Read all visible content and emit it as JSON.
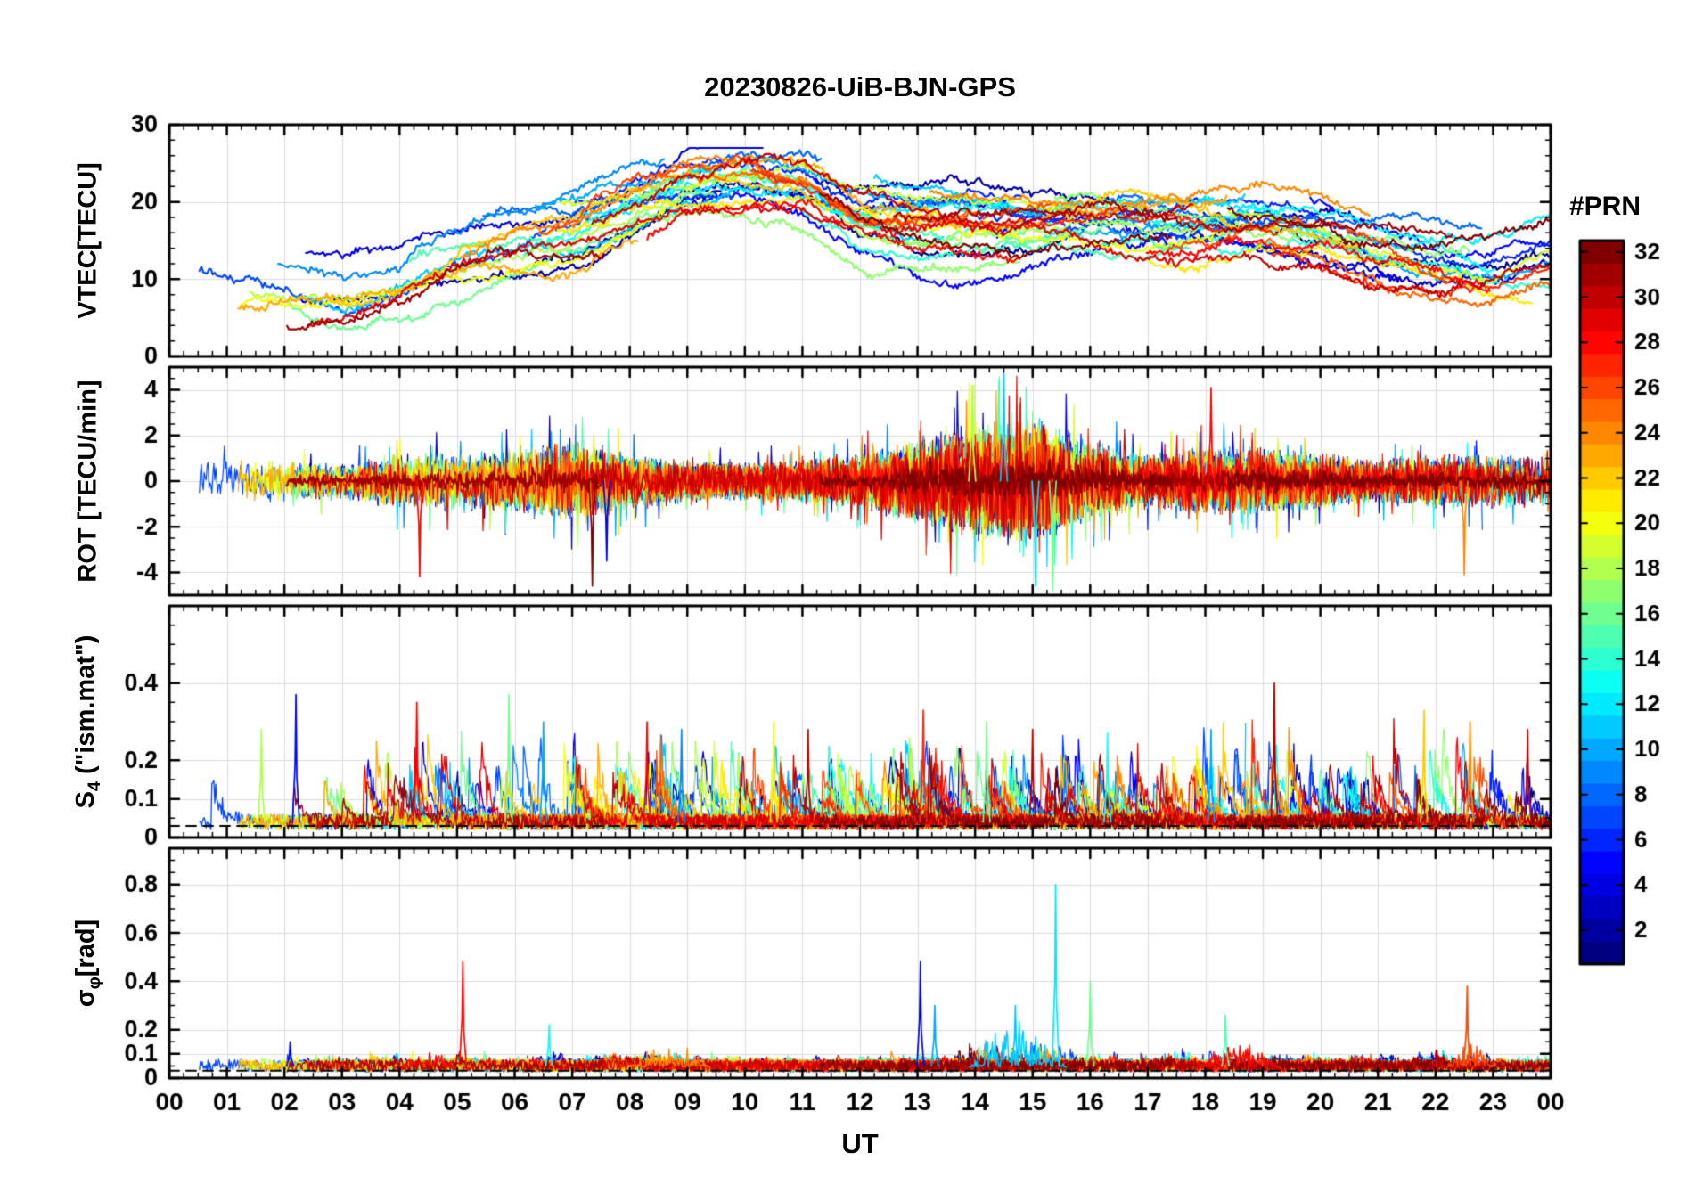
{
  "chart_data": {
    "type": "line",
    "title": "20230826-UiB-BJN-GPS",
    "xlabel": "UT",
    "xlim": [
      0,
      24
    ],
    "xticks": [
      0,
      1,
      2,
      3,
      4,
      5,
      6,
      7,
      8,
      9,
      10,
      11,
      12,
      13,
      14,
      15,
      16,
      17,
      18,
      19,
      20,
      21,
      22,
      23,
      24
    ],
    "xticklabels": [
      "00",
      "01",
      "02",
      "03",
      "04",
      "05",
      "06",
      "07",
      "08",
      "09",
      "10",
      "11",
      "12",
      "13",
      "14",
      "15",
      "16",
      "17",
      "18",
      "19",
      "20",
      "21",
      "22",
      "23",
      "00"
    ],
    "grid": true,
    "colorbar": {
      "label": "#PRN",
      "colormap": "jet",
      "lim": [
        1,
        32
      ],
      "ticks": [
        2,
        4,
        6,
        8,
        10,
        12,
        14,
        16,
        18,
        20,
        22,
        24,
        26,
        28,
        30,
        32
      ]
    },
    "panels": [
      {
        "name": "VTEC",
        "ylabel": "VTEC[TECU]",
        "ylim": [
          0,
          30
        ],
        "yticks": [
          0,
          10,
          20,
          30
        ],
        "series_model": {
          "kind": "multi-prn-smooth-arcs",
          "mean_curve_hourly": [
            10,
            9,
            8.5,
            8,
            9.5,
            13,
            15,
            16,
            19,
            22,
            23,
            22,
            18,
            17,
            17,
            17,
            17,
            16.5,
            16,
            16,
            15,
            13,
            11.5,
            11,
            12
          ],
          "spread": 4,
          "range": [
            4,
            26
          ]
        }
      },
      {
        "name": "ROT",
        "ylabel": "ROT [TECU/min]",
        "ylim": [
          -5,
          5
        ],
        "yticks": [
          -4,
          -2,
          0,
          2,
          4
        ],
        "series_model": {
          "kind": "zero-centered-noise",
          "envelope_hourly": [
            1.6,
            1.4,
            1.4,
            1.2,
            1.8,
            1.8,
            2.2,
            2.6,
            1.8,
            1.4,
            1.2,
            1.4,
            1.8,
            2.8,
            3.8,
            4.2,
            2.6,
            1.8,
            2.2,
            2.2,
            1.8,
            1.4,
            1.8,
            1.8,
            1.6
          ]
        },
        "events": [
          {
            "t": 4.35,
            "v": -4.2,
            "prn": 28
          },
          {
            "t": 7.35,
            "v": -4.6,
            "prn": 32
          },
          {
            "t": 7.6,
            "v": -3.5,
            "prn": 4
          },
          {
            "t": 13.95,
            "v": 4.2,
            "prn": 18
          },
          {
            "t": 14.5,
            "v": 4.8,
            "prn": 11
          },
          {
            "t": 15.05,
            "v": -4.6,
            "prn": 12
          },
          {
            "t": 15.35,
            "v": -4.8,
            "prn": 16
          },
          {
            "t": 18.1,
            "v": 4.1,
            "prn": 28
          },
          {
            "t": 22.5,
            "v": -4.1,
            "prn": 24
          }
        ]
      },
      {
        "name": "S4",
        "ylabel": "S4 (\"ism.mat\")",
        "ylabel_parts": {
          "main": "S",
          "sub": "4",
          "rest": " (\"ism.mat\")"
        },
        "ylim": [
          0,
          0.6
        ],
        "yticks": [
          0,
          0.1,
          0.2,
          0.4
        ],
        "threshold": 0.03,
        "series_model": {
          "kind": "bursty-positive",
          "baseline": 0.04,
          "envelope_hourly": [
            0.16,
            0.24,
            0.3,
            0.14,
            0.28,
            0.26,
            0.28,
            0.26,
            0.26,
            0.24,
            0.26,
            0.24,
            0.2,
            0.26,
            0.26,
            0.24,
            0.22,
            0.24,
            0.26,
            0.3,
            0.2,
            0.24,
            0.28,
            0.26,
            0.22
          ]
        },
        "events": [
          {
            "t": 1.6,
            "v": 0.28,
            "prn": 18
          },
          {
            "t": 2.2,
            "v": 0.37,
            "prn": 5
          },
          {
            "t": 4.3,
            "v": 0.35,
            "prn": 28
          },
          {
            "t": 5.9,
            "v": 0.37,
            "prn": 16
          },
          {
            "t": 6.5,
            "v": 0.3,
            "prn": 10
          },
          {
            "t": 8.3,
            "v": 0.3,
            "prn": 28
          },
          {
            "t": 8.9,
            "v": 0.28,
            "prn": 9
          },
          {
            "t": 10.5,
            "v": 0.3,
            "prn": 20
          },
          {
            "t": 11.1,
            "v": 0.28,
            "prn": 30
          },
          {
            "t": 13.1,
            "v": 0.33,
            "prn": 27
          },
          {
            "t": 14.2,
            "v": 0.3,
            "prn": 16
          },
          {
            "t": 15.0,
            "v": 0.28,
            "prn": 30
          },
          {
            "t": 16.3,
            "v": 0.27,
            "prn": 13
          },
          {
            "t": 18.1,
            "v": 0.28,
            "prn": 10
          },
          {
            "t": 19.2,
            "v": 0.4,
            "prn": 31
          },
          {
            "t": 21.8,
            "v": 0.33,
            "prn": 22
          },
          {
            "t": 22.6,
            "v": 0.3,
            "prn": 24
          },
          {
            "t": 23.6,
            "v": 0.28,
            "prn": 30
          }
        ]
      },
      {
        "name": "sigma_phi",
        "ylabel": "σφ[rad]",
        "ylabel_parts": {
          "main": "σ",
          "sub": "φ",
          "rest": "[rad]"
        },
        "ylim": [
          0,
          0.95
        ],
        "yticks": [
          0,
          0.1,
          0.2,
          0.4,
          0.6,
          0.8
        ],
        "threshold": 0.03,
        "series_model": {
          "kind": "bursty-positive",
          "baseline": 0.05,
          "envelope_hourly": [
            0.07,
            0.09,
            0.1,
            0.07,
            0.1,
            0.12,
            0.09,
            0.1,
            0.13,
            0.11,
            0.07,
            0.06,
            0.07,
            0.11,
            0.18,
            0.22,
            0.11,
            0.09,
            0.13,
            0.11,
            0.09,
            0.08,
            0.16,
            0.11,
            0.09
          ]
        },
        "regions": [
          {
            "t0": 13.9,
            "t1": 15.6,
            "max": 0.3,
            "prn": 11
          },
          {
            "t0": 8.0,
            "t1": 9.4,
            "max": 0.16,
            "prn": 24
          },
          {
            "t0": 17.9,
            "t1": 19.3,
            "max": 0.18,
            "prn": 28
          },
          {
            "t0": 4.0,
            "t1": 5.0,
            "max": 0.15,
            "prn": 28
          },
          {
            "t0": 22.2,
            "t1": 23.0,
            "max": 0.2,
            "prn": 26
          }
        ],
        "events": [
          {
            "t": 5.1,
            "v": 0.48,
            "prn": 28
          },
          {
            "t": 13.05,
            "v": 0.48,
            "prn": 4
          },
          {
            "t": 13.3,
            "v": 0.3,
            "prn": 10
          },
          {
            "t": 14.7,
            "v": 0.3,
            "prn": 11
          },
          {
            "t": 15.4,
            "v": 0.8,
            "prn": 12
          },
          {
            "t": 16.0,
            "v": 0.4,
            "prn": 16
          },
          {
            "t": 18.35,
            "v": 0.26,
            "prn": 15
          },
          {
            "t": 22.55,
            "v": 0.38,
            "prn": 26
          },
          {
            "t": 6.6,
            "v": 0.22,
            "prn": 13
          },
          {
            "t": 2.1,
            "v": 0.15,
            "prn": 5
          }
        ]
      }
    ]
  }
}
